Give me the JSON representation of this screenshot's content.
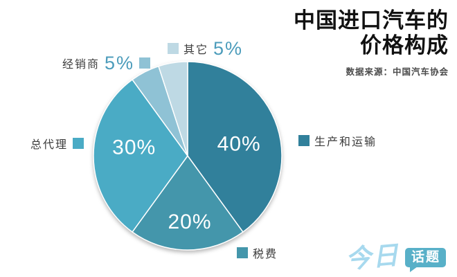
{
  "header": {
    "title_line1": "中国进口汽车的",
    "title_line2": "价格构成",
    "source": "数据来源：中国汽车协会"
  },
  "chart_data": {
    "type": "pie",
    "title": "中国进口汽车的价格构成",
    "source_note": "数据来源：中国汽车协会",
    "direction": "clockwise",
    "start_angle_deg": 0,
    "legend_position": "around",
    "total": 100,
    "slices": [
      {
        "label": "生产和运输",
        "value": 40,
        "value_label": "40%",
        "color": "#31809B",
        "show_label_inside": true
      },
      {
        "label": "税费",
        "value": 20,
        "value_label": "20%",
        "color": "#4496AB",
        "show_label_inside": true
      },
      {
        "label": "总代理",
        "value": 30,
        "value_label": "30%",
        "color": "#4AABC5",
        "show_label_inside": true
      },
      {
        "label": "经销商",
        "value": 5,
        "value_label": "5%",
        "color": "#8FC2D5",
        "show_label_inside": false
      },
      {
        "label": "其它",
        "value": 5,
        "value_label": "5%",
        "color": "#BED9E4",
        "show_label_inside": false
      }
    ],
    "inside_label_color": "#FFFFFF",
    "outside_value_color": "#4C9CBB"
  },
  "logo": {
    "script_text": "今日",
    "badge_text": "话题",
    "script_color": "#A7D9EE",
    "badge_color": "#58B0C8"
  }
}
